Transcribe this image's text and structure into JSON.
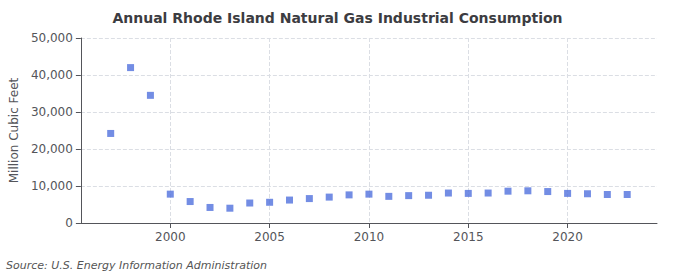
{
  "chart_data": {
    "type": "scatter",
    "title": "Annual Rhode Island Natural Gas Industrial Consumption",
    "ylabel": "Million Cubic Feet",
    "annotations": [
      "Source: U.S. Energy Information Administration"
    ],
    "x": [
      1997,
      1998,
      1999,
      2000,
      2001,
      2002,
      2003,
      2004,
      2005,
      2006,
      2007,
      2008,
      2009,
      2010,
      2011,
      2012,
      2013,
      2014,
      2015,
      2016,
      2017,
      2018,
      2019,
      2020,
      2021,
      2022,
      2023
    ],
    "values": [
      24200,
      42000,
      34500,
      7800,
      5800,
      4200,
      4000,
      5400,
      5600,
      6200,
      6600,
      7000,
      7600,
      7800,
      7200,
      7400,
      7500,
      8100,
      8000,
      8100,
      8600,
      8700,
      8500,
      8000,
      7900,
      7700,
      7700
    ],
    "xlim": [
      1995.5,
      2024.5
    ],
    "xticks": [
      2000,
      2005,
      2010,
      2015,
      2020
    ],
    "ylim": [
      0,
      50000
    ],
    "yticks": [
      0,
      {
        "value": 10000,
        "label": "10,000"
      },
      {
        "value": 20000,
        "label": "20,000"
      },
      {
        "value": 30000,
        "label": "30,000"
      },
      {
        "value": 40000,
        "label": "40,000"
      },
      {
        "value": 50000,
        "label": "50,000"
      }
    ],
    "marker": "square",
    "grid": true
  }
}
